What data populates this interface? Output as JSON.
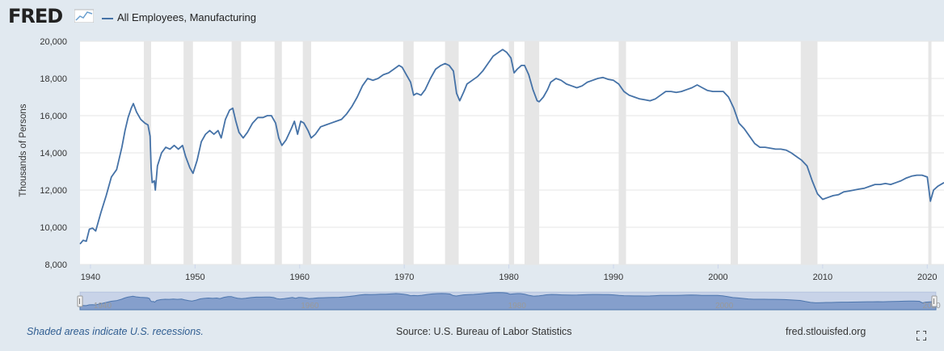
{
  "header": {
    "logo_text": "FRED",
    "legend_label": "All Employees, Manufacturing"
  },
  "footer": {
    "recessions_note": "Shaded areas indicate U.S. recessions.",
    "source": "Source: U.S. Bureau of Labor Statistics",
    "site": "fred.stlouisfed.org"
  },
  "icons": {
    "logo_mark": "chart-logo-icon",
    "fullscreen": "fullscreen-icon"
  },
  "colors": {
    "series": "#4572a7",
    "recession": "#e6e6e6",
    "background": "#e1e9f0",
    "navigator": "#8fa9cf"
  },
  "chart_data": {
    "type": "line",
    "title": "",
    "xlabel": "",
    "ylabel": "Thousands of Persons",
    "xlim": [
      1939,
      2021.6
    ],
    "ylim": [
      8000,
      20000
    ],
    "x_ticks": [
      "1940",
      "1950",
      "1960",
      "1970",
      "1980",
      "1990",
      "2000",
      "2010",
      "2020"
    ],
    "y_ticks": [
      "8,000",
      "10,000",
      "12,000",
      "14,000",
      "16,000",
      "18,000",
      "20,000"
    ],
    "grid": true,
    "legend": "top-left",
    "navigator_labels": [
      "1940",
      "1960",
      "1980",
      "2000",
      "2020"
    ],
    "recessions": [
      [
        1945.1,
        1945.8
      ],
      [
        1948.9,
        1949.8
      ],
      [
        1953.5,
        1954.4
      ],
      [
        1957.6,
        1958.3
      ],
      [
        1960.3,
        1961.1
      ],
      [
        1969.9,
        1970.9
      ],
      [
        1973.9,
        1975.2
      ],
      [
        1980.0,
        1980.5
      ],
      [
        1981.5,
        1982.9
      ],
      [
        1990.5,
        1991.2
      ],
      [
        2001.2,
        2001.9
      ],
      [
        2007.9,
        2009.5
      ],
      [
        2020.1,
        2020.4
      ]
    ],
    "series": [
      {
        "name": "All Employees, Manufacturing",
        "points": [
          [
            1939.0,
            9100
          ],
          [
            1939.3,
            9300
          ],
          [
            1939.6,
            9250
          ],
          [
            1939.9,
            9900
          ],
          [
            1940.2,
            9950
          ],
          [
            1940.5,
            9800
          ],
          [
            1941.0,
            10800
          ],
          [
            1941.5,
            11700
          ],
          [
            1942.0,
            12700
          ],
          [
            1942.5,
            13100
          ],
          [
            1943.0,
            14300
          ],
          [
            1943.3,
            15200
          ],
          [
            1943.6,
            15900
          ],
          [
            1943.9,
            16400
          ],
          [
            1944.1,
            16650
          ],
          [
            1944.4,
            16200
          ],
          [
            1944.8,
            15800
          ],
          [
            1945.2,
            15600
          ],
          [
            1945.5,
            15500
          ],
          [
            1945.7,
            14900
          ],
          [
            1945.8,
            13200
          ],
          [
            1945.9,
            12400
          ],
          [
            1946.1,
            12500
          ],
          [
            1946.2,
            12000
          ],
          [
            1946.4,
            13300
          ],
          [
            1946.8,
            14000
          ],
          [
            1947.2,
            14300
          ],
          [
            1947.6,
            14200
          ],
          [
            1948.0,
            14400
          ],
          [
            1948.4,
            14200
          ],
          [
            1948.8,
            14400
          ],
          [
            1949.1,
            13800
          ],
          [
            1949.5,
            13200
          ],
          [
            1949.8,
            12900
          ],
          [
            1950.2,
            13600
          ],
          [
            1950.6,
            14600
          ],
          [
            1951.0,
            15000
          ],
          [
            1951.4,
            15200
          ],
          [
            1951.8,
            15000
          ],
          [
            1952.2,
            15200
          ],
          [
            1952.5,
            14800
          ],
          [
            1952.9,
            15800
          ],
          [
            1953.3,
            16300
          ],
          [
            1953.6,
            16400
          ],
          [
            1953.9,
            15700
          ],
          [
            1954.2,
            15100
          ],
          [
            1954.6,
            14800
          ],
          [
            1955.0,
            15100
          ],
          [
            1955.5,
            15600
          ],
          [
            1956.0,
            15900
          ],
          [
            1956.5,
            15900
          ],
          [
            1956.9,
            16000
          ],
          [
            1957.3,
            16000
          ],
          [
            1957.7,
            15600
          ],
          [
            1958.0,
            14800
          ],
          [
            1958.3,
            14400
          ],
          [
            1958.7,
            14700
          ],
          [
            1959.2,
            15300
          ],
          [
            1959.5,
            15700
          ],
          [
            1959.8,
            15000
          ],
          [
            1960.1,
            15700
          ],
          [
            1960.4,
            15600
          ],
          [
            1960.8,
            15200
          ],
          [
            1961.1,
            14800
          ],
          [
            1961.5,
            15000
          ],
          [
            1962.0,
            15400
          ],
          [
            1962.5,
            15500
          ],
          [
            1963.0,
            15600
          ],
          [
            1963.5,
            15700
          ],
          [
            1964.0,
            15800
          ],
          [
            1964.5,
            16100
          ],
          [
            1965.0,
            16500
          ],
          [
            1965.5,
            17000
          ],
          [
            1966.0,
            17600
          ],
          [
            1966.5,
            18000
          ],
          [
            1967.0,
            17900
          ],
          [
            1967.5,
            18000
          ],
          [
            1968.0,
            18200
          ],
          [
            1968.5,
            18300
          ],
          [
            1969.0,
            18500
          ],
          [
            1969.5,
            18700
          ],
          [
            1969.8,
            18600
          ],
          [
            1970.2,
            18200
          ],
          [
            1970.6,
            17800
          ],
          [
            1970.9,
            17100
          ],
          [
            1971.2,
            17200
          ],
          [
            1971.6,
            17100
          ],
          [
            1972.0,
            17400
          ],
          [
            1972.5,
            18000
          ],
          [
            1973.0,
            18500
          ],
          [
            1973.5,
            18700
          ],
          [
            1973.9,
            18800
          ],
          [
            1974.3,
            18700
          ],
          [
            1974.7,
            18400
          ],
          [
            1975.0,
            17200
          ],
          [
            1975.3,
            16800
          ],
          [
            1975.7,
            17300
          ],
          [
            1976.0,
            17700
          ],
          [
            1976.5,
            17900
          ],
          [
            1977.0,
            18100
          ],
          [
            1977.5,
            18400
          ],
          [
            1978.0,
            18800
          ],
          [
            1978.5,
            19200
          ],
          [
            1979.0,
            19400
          ],
          [
            1979.4,
            19550
          ],
          [
            1979.8,
            19400
          ],
          [
            1980.2,
            19100
          ],
          [
            1980.5,
            18300
          ],
          [
            1980.8,
            18500
          ],
          [
            1981.2,
            18700
          ],
          [
            1981.5,
            18700
          ],
          [
            1981.9,
            18200
          ],
          [
            1982.3,
            17400
          ],
          [
            1982.7,
            16800
          ],
          [
            1982.9,
            16750
          ],
          [
            1983.3,
            17000
          ],
          [
            1983.7,
            17400
          ],
          [
            1984.0,
            17800
          ],
          [
            1984.5,
            18000
          ],
          [
            1985.0,
            17900
          ],
          [
            1985.5,
            17700
          ],
          [
            1986.0,
            17600
          ],
          [
            1986.5,
            17500
          ],
          [
            1987.0,
            17600
          ],
          [
            1987.5,
            17800
          ],
          [
            1988.0,
            17900
          ],
          [
            1988.5,
            18000
          ],
          [
            1989.0,
            18050
          ],
          [
            1989.5,
            17950
          ],
          [
            1990.0,
            17900
          ],
          [
            1990.5,
            17700
          ],
          [
            1991.0,
            17300
          ],
          [
            1991.5,
            17100
          ],
          [
            1992.0,
            17000
          ],
          [
            1992.5,
            16900
          ],
          [
            1993.0,
            16850
          ],
          [
            1993.5,
            16800
          ],
          [
            1994.0,
            16900
          ],
          [
            1994.5,
            17100
          ],
          [
            1995.0,
            17300
          ],
          [
            1995.5,
            17300
          ],
          [
            1996.0,
            17250
          ],
          [
            1996.5,
            17300
          ],
          [
            1997.0,
            17400
          ],
          [
            1997.5,
            17500
          ],
          [
            1998.0,
            17650
          ],
          [
            1998.5,
            17500
          ],
          [
            1999.0,
            17350
          ],
          [
            1999.5,
            17300
          ],
          [
            2000.0,
            17300
          ],
          [
            2000.5,
            17300
          ],
          [
            2001.0,
            17000
          ],
          [
            2001.5,
            16400
          ],
          [
            2002.0,
            15600
          ],
          [
            2002.5,
            15300
          ],
          [
            2003.0,
            14900
          ],
          [
            2003.5,
            14500
          ],
          [
            2004.0,
            14300
          ],
          [
            2004.5,
            14300
          ],
          [
            2005.0,
            14250
          ],
          [
            2005.5,
            14200
          ],
          [
            2006.0,
            14200
          ],
          [
            2006.5,
            14150
          ],
          [
            2007.0,
            14000
          ],
          [
            2007.5,
            13800
          ],
          [
            2008.0,
            13600
          ],
          [
            2008.5,
            13300
          ],
          [
            2009.0,
            12500
          ],
          [
            2009.5,
            11800
          ],
          [
            2010.0,
            11500
          ],
          [
            2010.5,
            11600
          ],
          [
            2011.0,
            11700
          ],
          [
            2011.5,
            11750
          ],
          [
            2012.0,
            11900
          ],
          [
            2012.5,
            11950
          ],
          [
            2013.0,
            12000
          ],
          [
            2013.5,
            12050
          ],
          [
            2014.0,
            12100
          ],
          [
            2014.5,
            12200
          ],
          [
            2015.0,
            12300
          ],
          [
            2015.5,
            12300
          ],
          [
            2016.0,
            12350
          ],
          [
            2016.5,
            12300
          ],
          [
            2017.0,
            12400
          ],
          [
            2017.5,
            12500
          ],
          [
            2018.0,
            12650
          ],
          [
            2018.5,
            12750
          ],
          [
            2019.0,
            12800
          ],
          [
            2019.5,
            12800
          ],
          [
            2020.0,
            12700
          ],
          [
            2020.3,
            11400
          ],
          [
            2020.6,
            12000
          ],
          [
            2021.0,
            12200
          ],
          [
            2021.6,
            12400
          ]
        ]
      }
    ]
  }
}
